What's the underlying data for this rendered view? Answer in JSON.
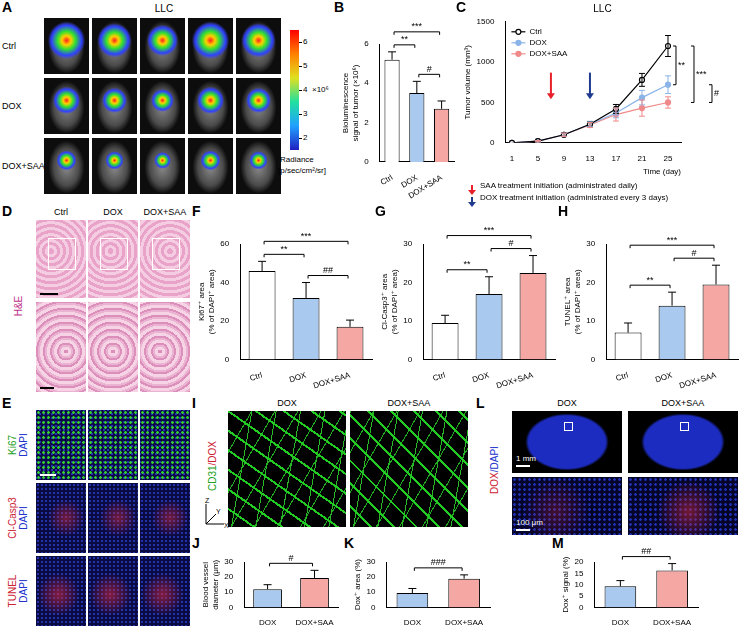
{
  "chart_data": [
    {
      "panel": "B",
      "type": "bar",
      "categories": [
        "Ctrl",
        "DOX",
        "DOX+SAA"
      ],
      "values": [
        5.2,
        3.5,
        2.7
      ],
      "errors": [
        0.4,
        0.6,
        0.4
      ],
      "colors": [
        "#ffffff",
        "#a9c9ee",
        "#f4a7a3"
      ],
      "y_label": [
        "Bioluminescence",
        "signal of tumor (×10⁶)"
      ],
      "ylim": [
        0,
        6
      ],
      "yticks": [
        0,
        2,
        4,
        6
      ],
      "grid": false,
      "significance": [
        {
          "between": [
            "Ctrl",
            "DOX"
          ],
          "label": "**"
        },
        {
          "between": [
            "Ctrl",
            "DOX+SAA"
          ],
          "label": "***"
        },
        {
          "between": [
            "DOX",
            "DOX+SAA"
          ],
          "label": "#"
        }
      ]
    },
    {
      "panel": "C",
      "type": "line",
      "title": "LLC",
      "x": [
        1,
        5,
        9,
        13,
        17,
        21,
        25
      ],
      "series": [
        {
          "name": "Ctrl",
          "color": "#000000",
          "marker": "open circle",
          "values": [
            0,
            20,
            100,
            230,
            420,
            780,
            1200
          ],
          "errors": [
            0,
            8,
            20,
            35,
            55,
            80,
            130
          ]
        },
        {
          "name": "DOX",
          "color": "#8ab4e8",
          "marker": "circle",
          "values": [
            0,
            20,
            100,
            230,
            370,
            560,
            720
          ],
          "errors": [
            0,
            8,
            20,
            30,
            60,
            90,
            110
          ]
        },
        {
          "name": "DOX+SAA",
          "color": "#f08a8a",
          "marker": "circle",
          "values": [
            0,
            20,
            100,
            220,
            350,
            430,
            500
          ],
          "errors": [
            0,
            8,
            20,
            30,
            80,
            100,
            70
          ]
        }
      ],
      "x_label": "Time (day)",
      "y_label": "Tumor volume (mm³)",
      "xlim": [
        0,
        27
      ],
      "xticks": [
        1,
        5,
        9,
        13,
        17,
        21,
        25
      ],
      "ylim": [
        0,
        1500
      ],
      "yticks": [
        0,
        500,
        1000,
        1500
      ],
      "grid": false,
      "legend": "upper left",
      "significance": [
        {
          "between": [
            "Ctrl",
            "DOX"
          ],
          "label": "**"
        },
        {
          "between": [
            "Ctrl",
            "DOX+SAA"
          ],
          "label": "***"
        },
        {
          "between": [
            "DOX",
            "DOX+SAA"
          ],
          "label": "#"
        }
      ],
      "annotations": [
        {
          "x": 7,
          "label": "SAA treatment initiation (administrated daily)",
          "color": "#e8202a"
        },
        {
          "x": 13,
          "label": "DOX treatment initiation (administrated every 3 days)",
          "color": "#1f3b8f"
        }
      ]
    },
    {
      "panel": "F",
      "type": "bar",
      "categories": [
        "Ctrl",
        "DOX",
        "DOX+SAA"
      ],
      "values": [
        46,
        32,
        17
      ],
      "errors": [
        5,
        8,
        3.5
      ],
      "colors": [
        "#ffffff",
        "#a9c9ee",
        "#f4a7a3"
      ],
      "y_label": [
        "Ki67⁺ area",
        "(% of DAPI⁺ area)"
      ],
      "ylim": [
        0,
        60
      ],
      "yticks": [
        0,
        20,
        40,
        60
      ],
      "grid": false,
      "significance": [
        {
          "between": [
            "Ctrl",
            "DOX"
          ],
          "label": "**"
        },
        {
          "between": [
            "Ctrl",
            "DOX+SAA"
          ],
          "label": "***"
        },
        {
          "between": [
            "DOX",
            "DOX+SAA"
          ],
          "label": "##"
        }
      ]
    },
    {
      "panel": "G",
      "type": "bar",
      "categories": [
        "Ctrl",
        "DOX",
        "DOX+SAA"
      ],
      "values": [
        9.5,
        17,
        22.5
      ],
      "errors": [
        2,
        4.5,
        4.5
      ],
      "colors": [
        "#ffffff",
        "#a9c9ee",
        "#f4a7a3"
      ],
      "y_label": [
        "Cl-Casp3⁺ area",
        "(% of DAPI⁺ area)"
      ],
      "ylim": [
        0,
        30
      ],
      "yticks": [
        0,
        10,
        20,
        30
      ],
      "grid": false,
      "significance": [
        {
          "between": [
            "Ctrl",
            "DOX"
          ],
          "label": "**"
        },
        {
          "between": [
            "Ctrl",
            "DOX+SAA"
          ],
          "label": "***"
        },
        {
          "between": [
            "DOX",
            "DOX+SAA"
          ],
          "label": "#"
        }
      ]
    },
    {
      "panel": "H",
      "type": "bar",
      "categories": [
        "Ctrl",
        "DOX",
        "DOX+SAA"
      ],
      "values": [
        7,
        14,
        19.5
      ],
      "errors": [
        2.5,
        3.5,
        5
      ],
      "colors": [
        "#ffffff",
        "#a9c9ee",
        "#f4a7a3"
      ],
      "y_label": [
        "TUNEL⁺ area",
        "(% of DAPI⁺ area)"
      ],
      "ylim": [
        0,
        30
      ],
      "yticks": [
        0,
        10,
        20,
        30
      ],
      "grid": false,
      "significance": [
        {
          "between": [
            "Ctrl",
            "DOX"
          ],
          "label": "**"
        },
        {
          "between": [
            "Ctrl",
            "DOX+SAA"
          ],
          "label": "***"
        },
        {
          "between": [
            "DOX",
            "DOX+SAA"
          ],
          "label": "#"
        }
      ]
    },
    {
      "panel": "J",
      "type": "bar",
      "categories": [
        "DOX",
        "DOX+SAA"
      ],
      "values": [
        12,
        19.5
      ],
      "errors": [
        3,
        5
      ],
      "colors": [
        "#a9c9ee",
        "#f4a7a3"
      ],
      "y_label": [
        "Blood vessel",
        "diameter (μm)"
      ],
      "ylim": [
        0,
        30
      ],
      "yticks": [
        0,
        10,
        20,
        30
      ],
      "grid": false,
      "significance": [
        {
          "between": [
            "DOX",
            "DOX+SAA"
          ],
          "label": "#"
        }
      ]
    },
    {
      "panel": "K",
      "type": "bar",
      "categories": [
        "DOX",
        "DOX+SAA"
      ],
      "values": [
        9.5,
        19
      ],
      "errors": [
        3,
        2.5
      ],
      "colors": [
        "#a9c9ee",
        "#f4a7a3"
      ],
      "y_label": "Dox⁺ area (%)",
      "ylim": [
        0,
        30
      ],
      "yticks": [
        0,
        10,
        20,
        30
      ],
      "grid": false,
      "significance": [
        {
          "between": [
            "DOX",
            "DOX+SAA"
          ],
          "label": "###"
        }
      ]
    },
    {
      "panel": "M",
      "type": "bar",
      "categories": [
        "DOX",
        "DOX+SAA"
      ],
      "values": [
        9.3,
        16.3
      ],
      "errors": [
        2.5,
        3
      ],
      "colors": [
        "#a9c9ee",
        "#f4a7a3"
      ],
      "y_label": "Dox⁺ signal (%)",
      "ylim": [
        0,
        20
      ],
      "yticks": [
        0,
        5,
        10,
        15,
        20
      ],
      "grid": false,
      "significance": [
        {
          "between": [
            "DOX",
            "DOX+SAA"
          ],
          "label": "##"
        }
      ]
    }
  ],
  "images": [
    {
      "panel": "A",
      "title": "LLC",
      "rows": [
        "Ctrl",
        "DOX",
        "DOX+SAA"
      ],
      "colorbar": {
        "label": "Radiance",
        "unit": "[p/sec/cm²/sr]",
        "multiplier": "×10⁶",
        "range": [
          1.5,
          6.5
        ],
        "ticks": [
          2,
          3,
          4,
          5,
          6
        ]
      }
    },
    {
      "panel": "D",
      "columns": [
        "Ctrl",
        "DOX",
        "DOX+SAA"
      ],
      "stain": {
        "text": "H&E",
        "color": "#c0308a"
      }
    },
    {
      "panel": "E",
      "rows": [
        [
          {
            "text": "Ki67",
            "color": "#22a022"
          },
          {
            "text": "DAPI",
            "color": "#2233cc"
          }
        ],
        [
          {
            "text": "Cl-Casp3",
            "color": "#cc2233"
          },
          {
            "text": "DAPI",
            "color": "#2233cc"
          }
        ],
        [
          {
            "text": "TUNEL",
            "color": "#cc2233"
          },
          {
            "text": "DAPI",
            "color": "#2233cc"
          }
        ]
      ]
    },
    {
      "panel": "I",
      "columns": [
        "DOX",
        "DOX+SAA"
      ],
      "label_parts": [
        {
          "text": "CD31",
          "color": "#22a022"
        },
        {
          "text": "/",
          "color": "#cc2233"
        },
        {
          "text": "DOX",
          "color": "#cc2233"
        }
      ],
      "axes": [
        "Z",
        "Y",
        "X"
      ]
    },
    {
      "panel": "L",
      "columns": [
        "DOX",
        "DOX+SAA"
      ],
      "label_parts": [
        {
          "text": "DOX",
          "color": "#cc2233"
        },
        {
          "text": "/",
          "color": "#2233cc"
        },
        {
          "text": "DAPI",
          "color": "#2233cc"
        }
      ],
      "scale_bars": [
        "1 mm",
        "100 μm"
      ]
    }
  ]
}
